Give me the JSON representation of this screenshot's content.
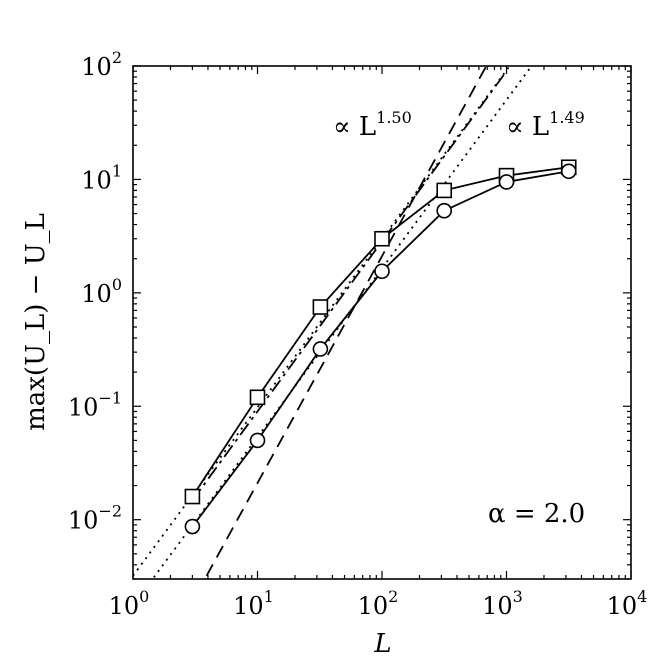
{
  "chart_data": {
    "type": "line",
    "xscale": "log",
    "yscale": "log",
    "xlim": [
      1,
      10000
    ],
    "ylim": [
      0.003,
      100
    ],
    "xlabel": "L",
    "ylabel": "max(U_L) − U_L",
    "grid": false,
    "x_ticks": [
      {
        "base": "10",
        "exp": "0"
      },
      {
        "base": "10",
        "exp": "1"
      },
      {
        "base": "10",
        "exp": "2"
      },
      {
        "base": "10",
        "exp": "3"
      },
      {
        "base": "10",
        "exp": "4"
      }
    ],
    "y_ticks": [
      {
        "base": "10",
        "exp": "−2"
      },
      {
        "base": "10",
        "exp": "−1"
      },
      {
        "base": "10",
        "exp": "0"
      },
      {
        "base": "10",
        "exp": "1"
      },
      {
        "base": "10",
        "exp": "2"
      }
    ],
    "series": [
      {
        "marker": "square",
        "x": [
          3,
          10,
          32,
          100,
          316,
          1000,
          3162
        ],
        "y": [
          0.016,
          0.12,
          0.75,
          3.0,
          8.0,
          10.8,
          12.8
        ]
      },
      {
        "marker": "circle",
        "x": [
          3,
          10,
          32,
          100,
          316,
          1000,
          3162
        ],
        "y": [
          0.0087,
          0.05,
          0.32,
          1.55,
          5.3,
          9.5,
          11.8
        ]
      }
    ],
    "fit_lines": [
      {
        "style": "dashdot",
        "label": "∝ L",
        "exponent_label": "1.50",
        "slope": 1.5,
        "x": [
          3,
          1000
        ],
        "y": [
          0.0148,
          90.0
        ]
      },
      {
        "style": "dotted",
        "slope": 1.49,
        "x": [
          1,
          3000
        ],
        "y": [
          0.0032,
          470
        ]
      },
      {
        "style": "dotted",
        "label": "∝ L",
        "exponent_label": "1.49",
        "slope": 1.49,
        "x": [
          1,
          3000
        ],
        "y": [
          0.00175,
          257
        ]
      },
      {
        "style": "dashed",
        "slope": 2.0,
        "x": [
          3.9,
          3000
        ],
        "y": [
          0.0032,
          1900
        ]
      }
    ],
    "annotations": [
      {
        "text": "α = 2.0"
      }
    ]
  }
}
